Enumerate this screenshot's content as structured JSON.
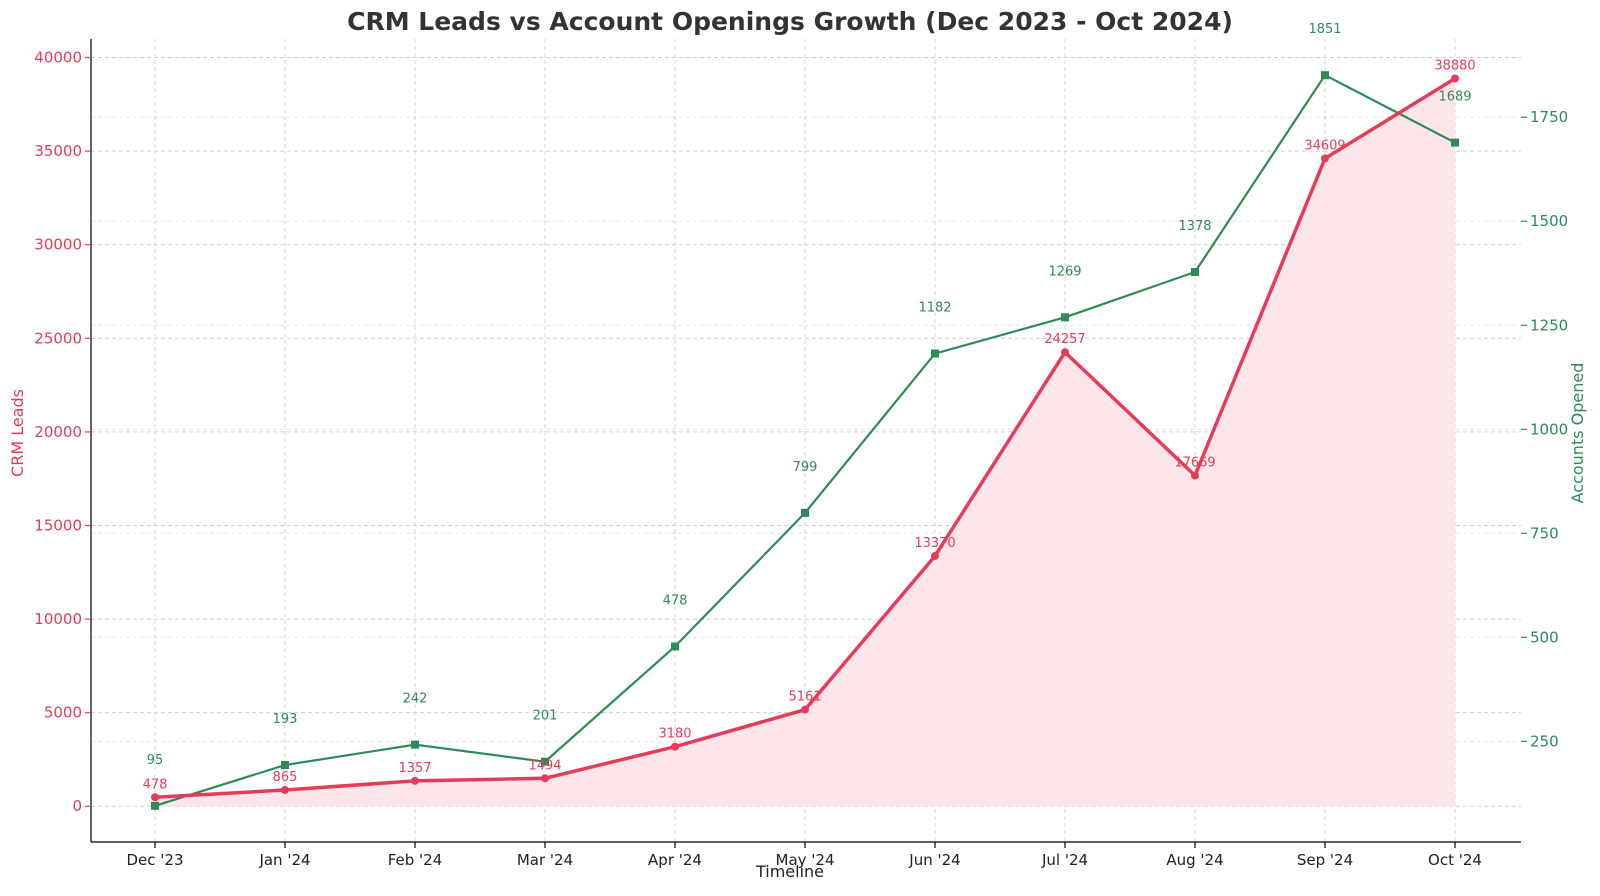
{
  "chart_data": {
    "type": "line",
    "title": "CRM Leads vs Account Openings Growth (Dec 2023 - Oct 2024)",
    "xlabel": "Timeline",
    "categories": [
      "Dec '23",
      "Jan '24",
      "Feb '24",
      "Mar '24",
      "Apr '24",
      "May '24",
      "Jun '24",
      "Jul '24",
      "Aug '24",
      "Sep '24",
      "Oct '24"
    ],
    "series": [
      {
        "name": "CRM Leads",
        "axis": "left",
        "color": "#e63c5a",
        "fill": "#fde6ea",
        "marker": "circle",
        "values": [
          478,
          865,
          1357,
          1494,
          3180,
          5161,
          13370,
          24257,
          17669,
          34609,
          38880
        ]
      },
      {
        "name": "Accounts Opened",
        "axis": "right",
        "color": "#2e8b57",
        "marker": "square",
        "values": [
          95,
          193,
          242,
          201,
          478,
          799,
          1182,
          1269,
          1378,
          1851,
          1689
        ]
      }
    ],
    "y_left": {
      "label": "CRM Leads",
      "ylim": [
        -1910,
        40990
      ],
      "ticks": [
        0,
        5000,
        10000,
        15000,
        20000,
        25000,
        30000,
        35000,
        40000
      ]
    },
    "y_right": {
      "label": "Accounts Opened",
      "ylim": [
        8,
        1938
      ],
      "ticks": [
        250,
        500,
        750,
        1000,
        1250,
        1500,
        1750
      ]
    },
    "grid": true
  }
}
